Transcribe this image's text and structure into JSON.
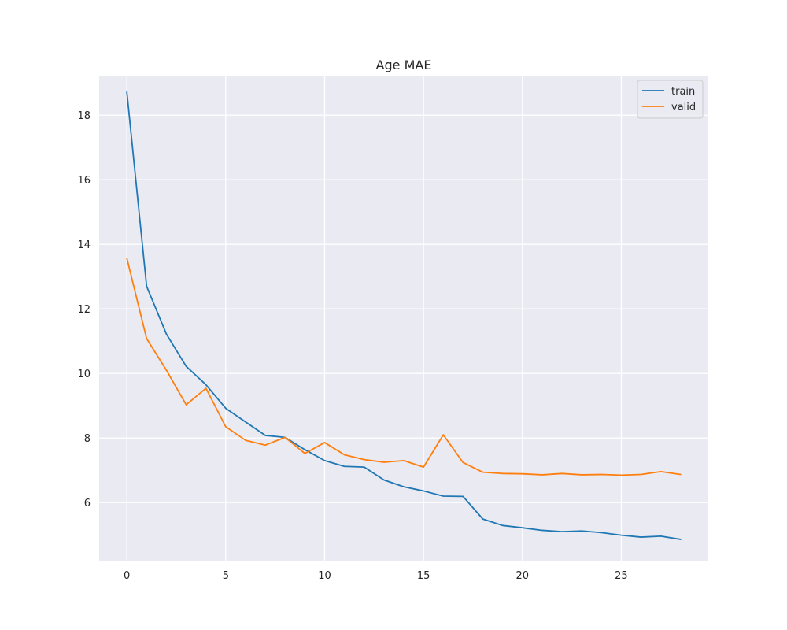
{
  "chart_data": {
    "type": "line",
    "title": "Age MAE",
    "xlabel": "",
    "ylabel": "",
    "xlim": [
      -1.4,
      29.4
    ],
    "ylim": [
      4.2,
      19.2
    ],
    "xticks": [
      0,
      5,
      10,
      15,
      20,
      25
    ],
    "yticks": [
      6,
      8,
      10,
      12,
      14,
      16,
      18
    ],
    "grid": true,
    "legend_position": "top-right",
    "x": [
      0,
      1,
      2,
      3,
      4,
      5,
      6,
      7,
      8,
      9,
      10,
      11,
      12,
      13,
      14,
      15,
      16,
      17,
      18,
      19,
      20,
      21,
      22,
      23,
      24,
      25,
      26,
      27,
      28
    ],
    "series": [
      {
        "name": "train",
        "color": "#1f77b4",
        "values": [
          18.72,
          12.7,
          11.22,
          10.22,
          9.65,
          8.92,
          8.5,
          8.08,
          8.02,
          7.64,
          7.3,
          7.12,
          7.1,
          6.7,
          6.49,
          6.36,
          6.2,
          6.19,
          5.49,
          5.29,
          5.22,
          5.14,
          5.1,
          5.12,
          5.07,
          4.99,
          4.93,
          4.96,
          4.86
        ]
      },
      {
        "name": "valid",
        "color": "#ff7f0e",
        "values": [
          13.57,
          11.08,
          10.1,
          9.03,
          9.54,
          8.35,
          7.93,
          7.78,
          8.02,
          7.52,
          7.86,
          7.48,
          7.33,
          7.25,
          7.3,
          7.1,
          8.1,
          7.24,
          6.94,
          6.9,
          6.89,
          6.86,
          6.9,
          6.86,
          6.87,
          6.85,
          6.87,
          6.96,
          6.87
        ]
      }
    ]
  }
}
